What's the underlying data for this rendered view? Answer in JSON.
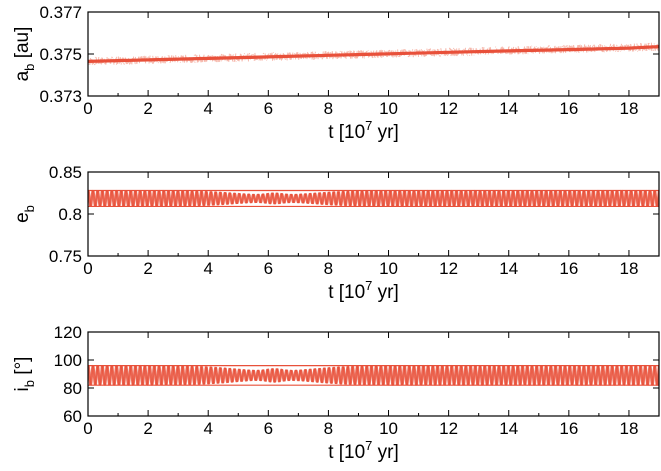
{
  "chart_data": [
    {
      "type": "line",
      "xlabel": "t [10^7 yr]",
      "ylabel": "a_b [au]",
      "xlim": [
        0,
        19
      ],
      "ylim": [
        0.373,
        0.377
      ],
      "x_ticks": [
        "0",
        "2",
        "4",
        "6",
        "8",
        "10",
        "12",
        "14",
        "16",
        "18"
      ],
      "y_ticks": [
        "0.373",
        "0.375",
        "0.377"
      ],
      "y_tick_values": [
        0.373,
        0.375,
        0.377
      ],
      "band": {
        "x": [
          0,
          19
        ],
        "center": [
          0.37465,
          0.37535
        ],
        "halfwidth": [
          0.0002,
          0.0002
        ]
      },
      "x": [
        0,
        2,
        4,
        6,
        8,
        10,
        12,
        14,
        16,
        18,
        19
      ],
      "y": [
        0.37465,
        0.37472,
        0.37479,
        0.37486,
        0.37494,
        0.37501,
        0.37508,
        0.37515,
        0.37521,
        0.37528,
        0.37535
      ]
    },
    {
      "type": "line",
      "xlabel": "t [10^7 yr]",
      "ylabel": "e_b",
      "xlim": [
        0,
        19
      ],
      "ylim": [
        0.75,
        0.85
      ],
      "x_ticks": [
        "0",
        "2",
        "4",
        "6",
        "8",
        "10",
        "12",
        "14",
        "16",
        "18"
      ],
      "y_ticks": [
        "0.75",
        "0.8",
        "0.85"
      ],
      "y_tick_values": [
        0.75,
        0.8,
        0.85
      ],
      "band": {
        "x": [
          0,
          19
        ],
        "low": 0.809,
        "high": 0.828,
        "beat_center": 6.2,
        "beat_width": 1.8
      }
    },
    {
      "type": "line",
      "xlabel": "t [10^7 yr]",
      "ylabel": "i_b [°]",
      "xlim": [
        0,
        19
      ],
      "ylim": [
        60,
        120
      ],
      "x_ticks": [
        "0",
        "2",
        "4",
        "6",
        "8",
        "10",
        "12",
        "14",
        "16",
        "18"
      ],
      "y_ticks": [
        "60",
        "80",
        "100",
        "120"
      ],
      "y_tick_values": [
        60,
        80,
        100,
        120
      ],
      "band": {
        "x": [
          0,
          19
        ],
        "low": 82,
        "high": 96,
        "beat_center": 6.2,
        "beat_width": 1.8
      }
    }
  ],
  "colors": {
    "series": "#e8503a",
    "series_light": "#f4a898",
    "axis": "#000000"
  }
}
